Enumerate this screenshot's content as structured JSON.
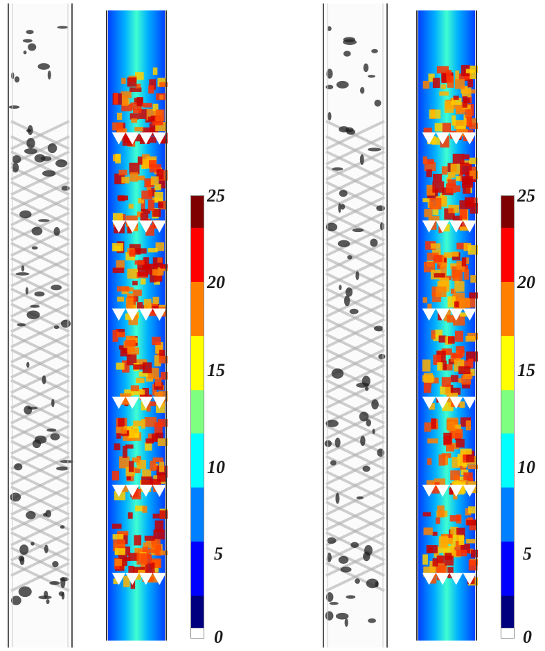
{
  "colorbars": [
    {
      "ticks": [
        "25",
        "20",
        "15",
        "10",
        "5",
        "0"
      ],
      "min": 0,
      "max": 25
    },
    {
      "ticks": [
        "25",
        "20",
        "15",
        "10",
        "5",
        "0"
      ],
      "min": 0,
      "max": 25
    }
  ],
  "colors": {
    "jet": [
      "#00007f",
      "#0000ff",
      "#007fff",
      "#00ffff",
      "#7fff7f",
      "#ffff00",
      "#ff7f00",
      "#ff0000",
      "#7f0000"
    ],
    "tube_wall": "#555555",
    "bubble": "#222222"
  }
}
